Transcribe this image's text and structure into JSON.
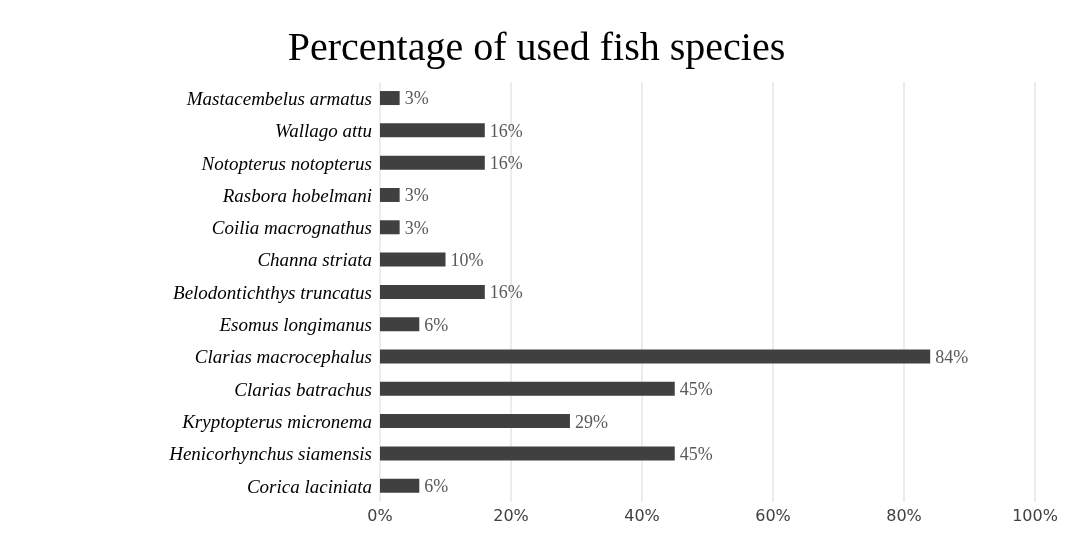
{
  "chart_data": {
    "type": "bar",
    "orientation": "horizontal",
    "title": "Percentage of used fish species",
    "categories": [
      "Mastacembelus armatus",
      "Wallago attu",
      "Notopterus notopterus",
      "Rasbora hobelmani",
      "Coilia macrognathus",
      "Channa striata",
      "Belodontichthys truncatus",
      "Esomus longimanus",
      "Clarias macrocephalus",
      "Clarias batrachus",
      "Kryptopterus micronema",
      "Henicorhynchus siamensis",
      "Corica laciniata"
    ],
    "values": [
      3,
      16,
      16,
      3,
      3,
      10,
      16,
      6,
      84,
      45,
      29,
      45,
      6
    ],
    "value_labels": [
      "3%",
      "16%",
      "16%",
      "3%",
      "3%",
      "10%",
      "16%",
      "6%",
      "84%",
      "45%",
      "29%",
      "45%",
      "6%"
    ],
    "color": "#404040",
    "xlim": [
      0,
      100
    ],
    "xticks": [
      {
        "value": 0,
        "label": "0%"
      },
      {
        "value": 20,
        "label": "20%"
      },
      {
        "value": 40,
        "label": "40%"
      },
      {
        "value": 60,
        "label": "60%"
      },
      {
        "value": 80,
        "label": "80%"
      },
      {
        "value": 100,
        "label": "100%"
      }
    ],
    "grid": "x",
    "legend": false
  }
}
